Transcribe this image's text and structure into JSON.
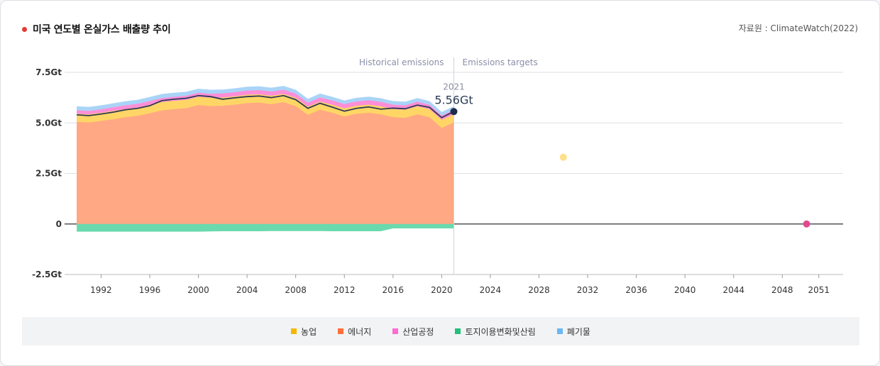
{
  "header": {
    "title": "미국 연도별 온실가스 배출량 추이",
    "source": "자료원 : ClimateWatch(2022)",
    "title_dot_color": "#e53935"
  },
  "chart_data": {
    "type": "area",
    "section_labels": {
      "historical": "Historical emissions",
      "targets": "Emissions targets"
    },
    "highlight": {
      "year_label": "2021",
      "value_label": "5.56Gt",
      "year": 2021,
      "value": 5.56
    },
    "y_axis": {
      "min": -2.5,
      "max": 7.5,
      "ticks": [
        7.5,
        5.0,
        2.5,
        0,
        -2.5
      ],
      "tick_labels": [
        "7.5Gt",
        "5.0Gt",
        "2.5Gt",
        "0",
        "-2.5Gt"
      ]
    },
    "x_axis": {
      "min": 1989,
      "max": 2053,
      "ticks": [
        1992,
        1996,
        2000,
        2004,
        2008,
        2012,
        2016,
        2020,
        2024,
        2028,
        2032,
        2036,
        2040,
        2044,
        2048,
        2051
      ]
    },
    "years": [
      1990,
      1991,
      1992,
      1993,
      1994,
      1995,
      1996,
      1997,
      1998,
      1999,
      2000,
      2001,
      2002,
      2003,
      2004,
      2005,
      2006,
      2007,
      2008,
      2009,
      2010,
      2011,
      2012,
      2013,
      2014,
      2015,
      2016,
      2017,
      2018,
      2019,
      2020,
      2021
    ],
    "series": [
      {
        "key": "energy",
        "name": "에너지",
        "color": "#ffa883",
        "values": [
          5.05,
          5.02,
          5.1,
          5.18,
          5.28,
          5.35,
          5.48,
          5.62,
          5.68,
          5.73,
          5.88,
          5.83,
          5.85,
          5.9,
          5.98,
          6.0,
          5.93,
          6.02,
          5.83,
          5.4,
          5.65,
          5.5,
          5.32,
          5.45,
          5.5,
          5.42,
          5.28,
          5.25,
          5.42,
          5.28,
          4.75,
          5.02
        ]
      },
      {
        "key": "agriculture",
        "name": "농업",
        "color": "#ffd666",
        "values": [
          0.4,
          0.4,
          0.4,
          0.41,
          0.41,
          0.41,
          0.41,
          0.41,
          0.41,
          0.41,
          0.41,
          0.41,
          0.41,
          0.41,
          0.41,
          0.41,
          0.41,
          0.41,
          0.41,
          0.4,
          0.4,
          0.4,
          0.4,
          0.4,
          0.4,
          0.4,
          0.4,
          0.4,
          0.4,
          0.4,
          0.4,
          0.4
        ]
      },
      {
        "key": "industry",
        "name": "산업공정",
        "color": "#ff8ed8",
        "values": [
          0.17,
          0.17,
          0.17,
          0.18,
          0.18,
          0.18,
          0.19,
          0.2,
          0.2,
          0.2,
          0.2,
          0.2,
          0.2,
          0.21,
          0.21,
          0.21,
          0.21,
          0.21,
          0.21,
          0.2,
          0.21,
          0.21,
          0.21,
          0.21,
          0.22,
          0.22,
          0.22,
          0.22,
          0.23,
          0.22,
          0.21,
          0.22
        ]
      },
      {
        "key": "waste",
        "name": "폐기물",
        "color": "#a9d4f7",
        "values": [
          0.2,
          0.2,
          0.2,
          0.2,
          0.2,
          0.2,
          0.2,
          0.2,
          0.2,
          0.2,
          0.2,
          0.2,
          0.19,
          0.19,
          0.19,
          0.19,
          0.19,
          0.19,
          0.19,
          0.19,
          0.19,
          0.18,
          0.18,
          0.18,
          0.18,
          0.18,
          0.18,
          0.18,
          0.18,
          0.18,
          0.18,
          0.18
        ]
      },
      {
        "key": "landuse",
        "name": "토지이용변화및산림",
        "color": "#6ad9ad",
        "values": [
          -0.38,
          -0.38,
          -0.38,
          -0.38,
          -0.38,
          -0.38,
          -0.38,
          -0.38,
          -0.38,
          -0.38,
          -0.38,
          -0.37,
          -0.36,
          -0.36,
          -0.36,
          -0.36,
          -0.35,
          -0.35,
          -0.35,
          -0.35,
          -0.35,
          -0.36,
          -0.36,
          -0.36,
          -0.36,
          -0.36,
          -0.22,
          -0.22,
          -0.22,
          -0.22,
          -0.22,
          -0.22
        ]
      }
    ],
    "total_line": {
      "color": "#2b3a55",
      "values": [
        5.4,
        5.36,
        5.44,
        5.53,
        5.65,
        5.72,
        5.85,
        6.1,
        6.17,
        6.22,
        6.35,
        6.3,
        6.17,
        6.24,
        6.3,
        6.33,
        6.25,
        6.35,
        6.15,
        5.72,
        5.97,
        5.78,
        5.58,
        5.72,
        5.79,
        5.68,
        5.73,
        5.7,
        5.88,
        5.77,
        5.26,
        5.56
      ]
    },
    "targets": [
      {
        "year": 2030,
        "value": 3.3,
        "color": "#ffe08a"
      },
      {
        "year": 2050,
        "value": 0,
        "color": "#e04b8f"
      }
    ],
    "grid": true
  },
  "legend": [
    {
      "label": "농업",
      "color": "#f5b800"
    },
    {
      "label": "에너지",
      "color": "#ff6f3a"
    },
    {
      "label": "산업공정",
      "color": "#ff6bd3"
    },
    {
      "label": "토지이용변화및산림",
      "color": "#22c07a"
    },
    {
      "label": "폐기물",
      "color": "#6ab7f5"
    }
  ]
}
